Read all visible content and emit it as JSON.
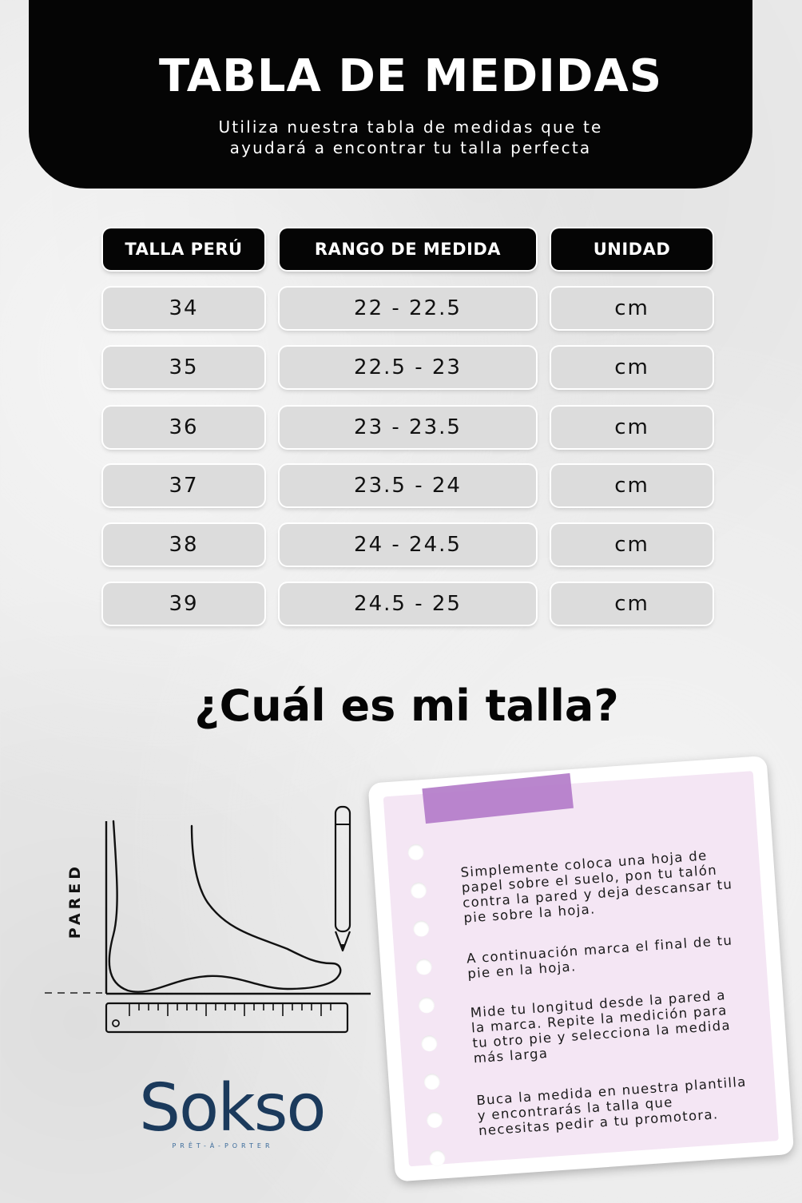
{
  "header": {
    "title": "TABLA DE MEDIDAS",
    "subtitle_line1": "Utiliza nuestra tabla de medidas que te",
    "subtitle_line2": "ayudará a encontrar tu talla perfecta"
  },
  "table": {
    "headers": [
      "TALLA PERÚ",
      "RANGO DE MEDIDA",
      "UNIDAD"
    ],
    "rows": [
      {
        "talla": "34",
        "rango": "22 - 22.5",
        "unidad": "cm"
      },
      {
        "talla": "35",
        "rango": "22.5 - 23",
        "unidad": "cm"
      },
      {
        "talla": "36",
        "rango": "23 - 23.5",
        "unidad": "cm"
      },
      {
        "talla": "37",
        "rango": "23.5 - 24",
        "unidad": "cm"
      },
      {
        "talla": "38",
        "rango": "24 - 24.5",
        "unidad": "cm"
      },
      {
        "talla": "39",
        "rango": "24.5 - 25",
        "unidad": "cm"
      }
    ]
  },
  "question": "¿Cuál es mi talla?",
  "illustration": {
    "wall_label": "PARED"
  },
  "logo": {
    "name": "Sokso",
    "tagline": "PRÊT-À-PORTER",
    "color": "#1b3a5c"
  },
  "note": {
    "tape_color": "#b37cc9",
    "background_color": "#f4e6f4",
    "steps": [
      "Simplemente coloca una hoja de papel sobre el suelo, pon tu talón contra la pared y deja descansar tu pie sobre la hoja.",
      "A continuación marca el final de tu pie en la hoja.",
      "Mide tu longitud desde la pared a la marca. Repite la medición para tu otro pie y selecciona la medida más larga",
      "Buca la medida en nuestra plantilla y encontrarás la talla que necesitas pedir a tu promotora."
    ]
  },
  "colors": {
    "header_bg": "#050505",
    "cell_bg": "#dcdcdc",
    "page_bg": "#eaeaea"
  }
}
